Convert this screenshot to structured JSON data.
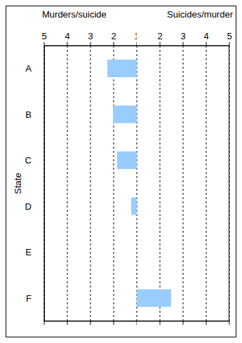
{
  "chart_data": [
    {
      "type": "bar",
      "orientation": "horizontal",
      "x_label": "Murders/suicide",
      "y_label": "State",
      "categories": [
        "A",
        "B",
        "C",
        "D",
        "E",
        "F"
      ],
      "values": [
        2.27,
        2.03,
        1.85,
        1.24,
        null,
        null
      ],
      "color": "#99ccff",
      "xlim": [
        5,
        1
      ],
      "xticks": [
        5,
        4,
        3,
        2,
        1
      ],
      "grid": true
    },
    {
      "type": "bar",
      "orientation": "horizontal",
      "x_label": "Suicides/murder",
      "categories": [
        "A",
        "B",
        "C",
        "D",
        "E",
        "F"
      ],
      "values": [
        null,
        null,
        null,
        null,
        null,
        2.48
      ],
      "color": "#99ccff",
      "xlim": [
        1,
        5
      ],
      "xticks": [
        2,
        3,
        4,
        5
      ],
      "grid": true,
      "tick_labels": "x"
    }
  ]
}
